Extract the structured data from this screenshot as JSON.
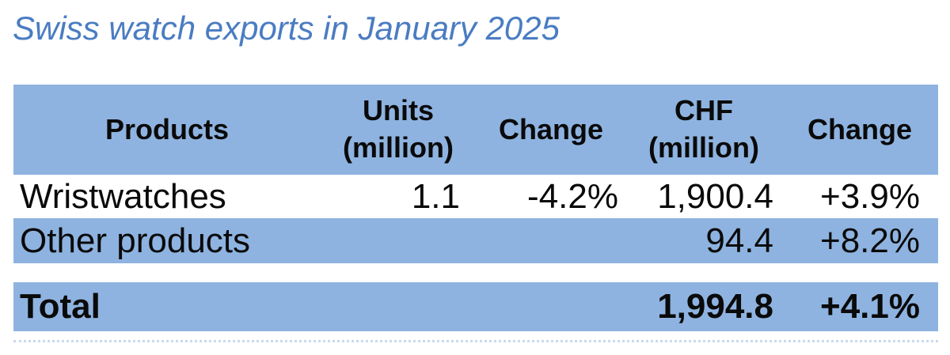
{
  "title": "Swiss watch exports in January 2025",
  "chart_data": {
    "type": "table",
    "title": "Swiss watch exports in January 2025",
    "columns": [
      "Products",
      "Units (million)",
      "Change",
      "CHF (million)",
      "Change"
    ],
    "rows": [
      [
        "Wristwatches",
        "1.1",
        "-4.2%",
        "1,900.4",
        "+3.9%"
      ],
      [
        "Other products",
        "",
        "",
        "94.4",
        "+8.2%"
      ],
      [
        "Total",
        "",
        "",
        "1,994.8",
        "+4.1%"
      ]
    ]
  },
  "table": {
    "headers": [
      {
        "line1": "Products",
        "line2": ""
      },
      {
        "line1": "Units",
        "line2": "(million)"
      },
      {
        "line1": "Change",
        "line2": ""
      },
      {
        "line1": "CHF",
        "line2": "(million)"
      },
      {
        "line1": "Change",
        "line2": ""
      }
    ],
    "rows": [
      {
        "product": "Wristwatches",
        "units": "1.1",
        "units_change": "-4.2%",
        "chf": "1,900.4",
        "chf_change": "+3.9%"
      },
      {
        "product": "Other products",
        "units": "",
        "units_change": "",
        "chf": "94.4",
        "chf_change": "+8.2%"
      }
    ],
    "total": {
      "label": "Total",
      "units": "",
      "units_change": "",
      "chf": "1,994.8",
      "chf_change": "+4.1%"
    }
  },
  "colors": {
    "band_blue": "#8EB3E0",
    "title_blue": "#4A7CC2",
    "text_black": "#0A0A0A",
    "cutoff_line_blue": "#C9D9EC"
  }
}
